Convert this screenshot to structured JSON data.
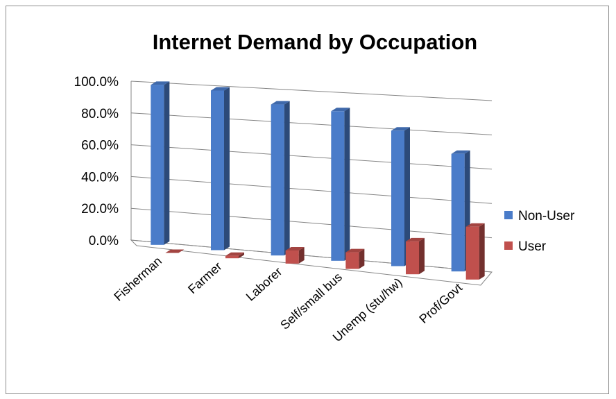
{
  "chart_data": {
    "type": "bar",
    "variant": "3d-column",
    "title": "Internet Demand by Occupation",
    "categories": [
      "Fisherman",
      "Farmer",
      "Laborer",
      "Self/small bus",
      "Unemp (stu/hw)",
      "Prof/Govt"
    ],
    "series": [
      {
        "name": "Non-User",
        "values": [
          100.0,
          98.5,
          92.0,
          90.0,
          80.5,
          69.0
        ],
        "color": "#4A7CC9"
      },
      {
        "name": "User",
        "values": [
          0.0,
          1.5,
          8.0,
          10.0,
          19.5,
          31.0
        ],
        "color": "#C0504D"
      }
    ],
    "ylim": [
      0,
      100
    ],
    "yticks": [
      "0.0%",
      "20.0%",
      "40.0%",
      "60.0%",
      "80.0%",
      "100.0%"
    ],
    "grid": true,
    "legend": "right"
  }
}
